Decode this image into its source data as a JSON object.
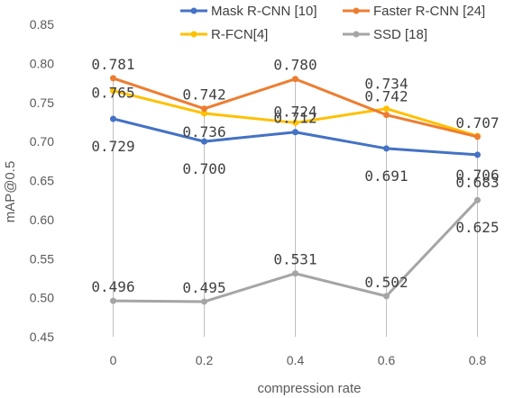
{
  "chart_data": {
    "type": "line",
    "xlabel": "compression rate",
    "ylabel": "mAP@0.5",
    "x": [
      "0",
      "0.2",
      "0.4",
      "0.6",
      "0.8"
    ],
    "yticks": [
      "0.45",
      "0.50",
      "0.55",
      "0.60",
      "0.65",
      "0.70",
      "0.75",
      "0.80",
      "0.85"
    ],
    "ylim": [
      0.45,
      0.85
    ],
    "grid": "vertical drop lines",
    "legend_position": "top",
    "series": [
      {
        "name": "Mask R-CNN [10]",
        "color": "#4472C4",
        "values": [
          0.729,
          0.7,
          0.712,
          0.691,
          0.683
        ],
        "labels": [
          "0.729",
          "0.700",
          "0.712",
          "0.691",
          "0.683"
        ]
      },
      {
        "name": "Faster R-CNN [24]",
        "color": "#ED7D31",
        "values": [
          0.781,
          0.742,
          0.78,
          0.734,
          0.706
        ],
        "labels": [
          "0.781",
          "0.742",
          "0.780",
          "0.734",
          "0.706"
        ]
      },
      {
        "name": "R-FCN[4]",
        "color": "#FFC000",
        "values": [
          0.765,
          0.736,
          0.724,
          0.742,
          0.707
        ],
        "labels": [
          "0.765",
          "0.736",
          "0.724",
          "0.742",
          "0.707"
        ]
      },
      {
        "name": "SSD [18]",
        "color": "#A5A5A5",
        "values": [
          0.496,
          0.495,
          0.531,
          0.502,
          0.625
        ],
        "labels": [
          "0.496",
          "0.495",
          "0.531",
          "0.502",
          "0.625"
        ]
      }
    ]
  }
}
